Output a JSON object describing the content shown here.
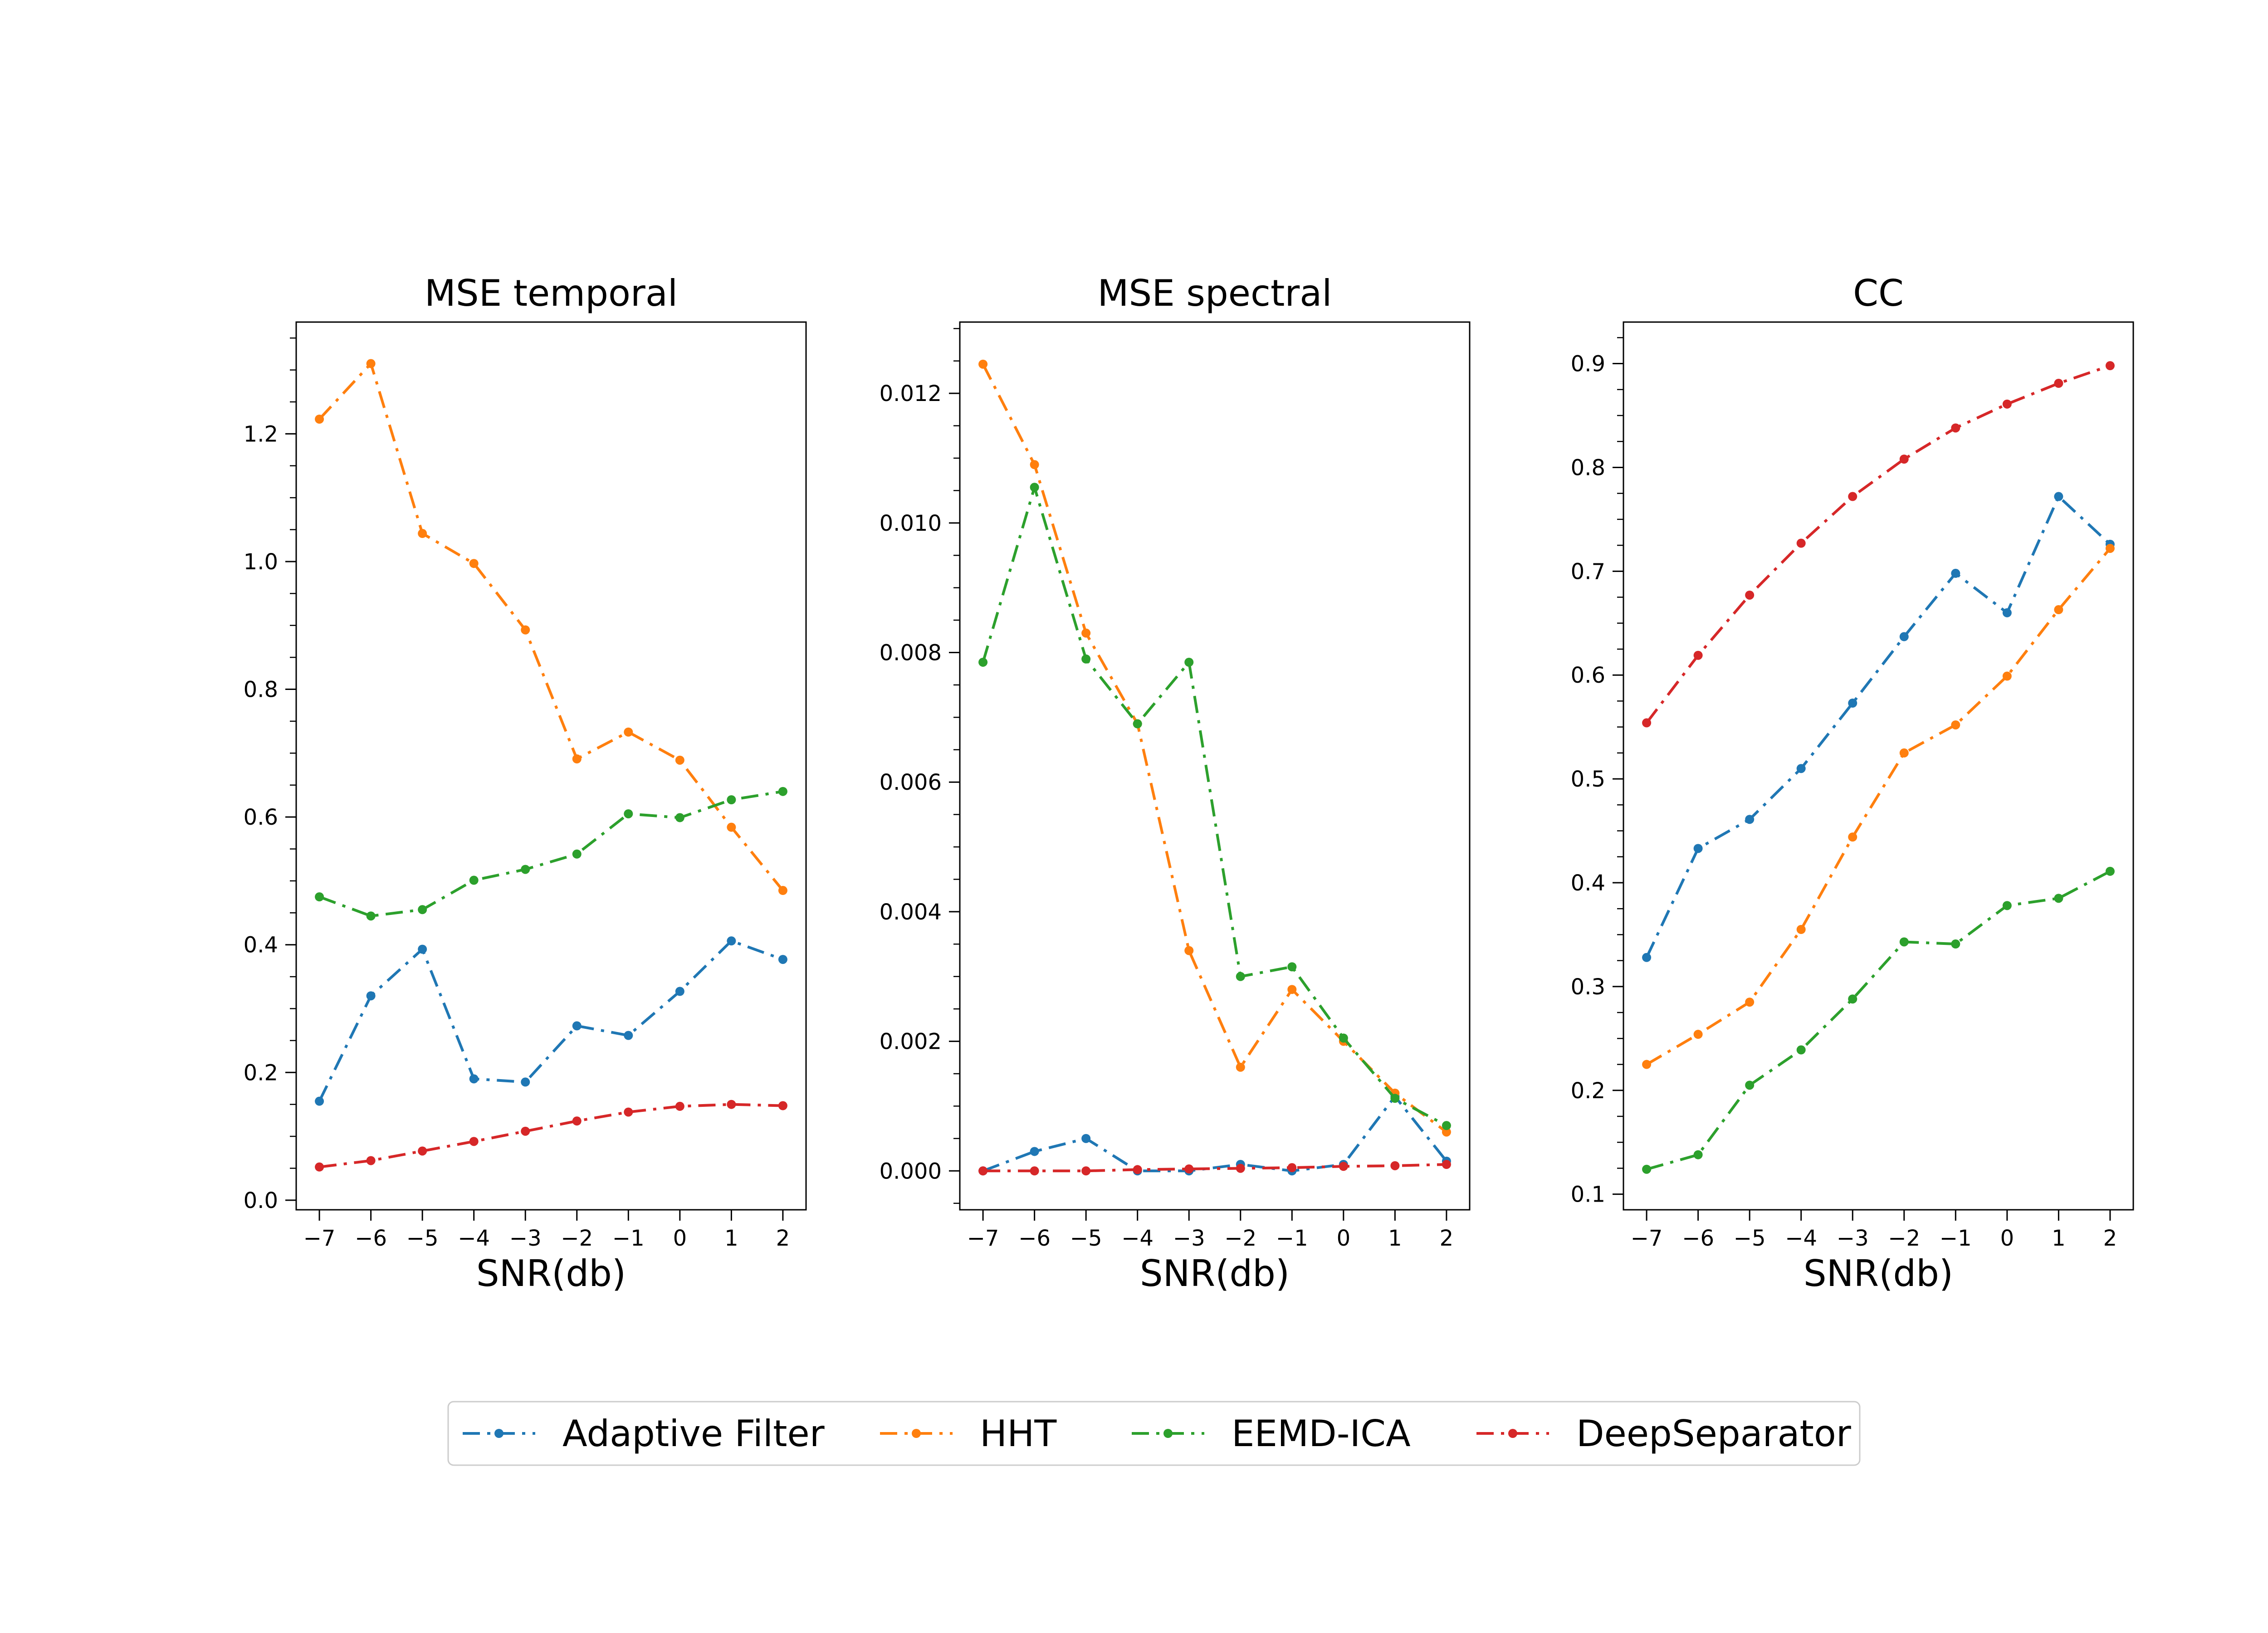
{
  "chart_data": [
    {
      "type": "line",
      "title": "MSE temporal",
      "xlabel": "SNR(db)",
      "ylabel": "",
      "x": [
        -7,
        -6,
        -5,
        -4,
        -3,
        -2,
        -1,
        0,
        1,
        2
      ],
      "xticks": [
        "−7",
        "−6",
        "−5",
        "−4",
        "−3",
        "−2",
        "−1",
        "0",
        "1",
        "2"
      ],
      "xlim": [
        -7.45,
        2.45
      ],
      "ylim": [
        -0.015,
        1.375
      ],
      "yticks": [
        "0.0",
        "0.2",
        "0.4",
        "0.6",
        "0.8",
        "1.0",
        "1.2"
      ],
      "ytick_values": [
        0.0,
        0.2,
        0.4,
        0.6,
        0.8,
        1.0,
        1.2
      ],
      "series": [
        {
          "name": "Adaptive Filter",
          "values": [
            0.155,
            0.32,
            0.393,
            0.19,
            0.185,
            0.273,
            0.258,
            0.327,
            0.406,
            0.377
          ]
        },
        {
          "name": "HHT",
          "values": [
            1.223,
            1.31,
            1.044,
            0.997,
            0.893,
            0.691,
            0.733,
            0.689,
            0.584,
            0.485
          ]
        },
        {
          "name": "EEMD-ICA",
          "values": [
            0.475,
            0.445,
            0.455,
            0.501,
            0.518,
            0.542,
            0.605,
            0.599,
            0.627,
            0.64
          ]
        },
        {
          "name": "DeepSeparator",
          "values": [
            0.052,
            0.062,
            0.077,
            0.092,
            0.108,
            0.124,
            0.138,
            0.147,
            0.15,
            0.148
          ]
        }
      ]
    },
    {
      "type": "line",
      "title": "MSE spectral",
      "xlabel": "SNR(db)",
      "ylabel": "",
      "x": [
        -7,
        -6,
        -5,
        -4,
        -3,
        -2,
        -1,
        0,
        1,
        2
      ],
      "xticks": [
        "−7",
        "−6",
        "−5",
        "−4",
        "−3",
        "−2",
        "−1",
        "0",
        "1",
        "2"
      ],
      "xlim": [
        -7.45,
        2.45
      ],
      "ylim": [
        -0.0006,
        0.0131
      ],
      "yticks": [
        "0.000",
        "0.002",
        "0.004",
        "0.006",
        "0.008",
        "0.010",
        "0.012"
      ],
      "ytick_values": [
        0.0,
        0.002,
        0.004,
        0.006,
        0.008,
        0.01,
        0.012
      ],
      "series": [
        {
          "name": "Adaptive Filter",
          "values": [
            0.0,
            0.0003,
            0.0005,
            0.0,
            0.0,
            0.0001,
            0.0,
            0.0001,
            0.00115,
            0.00015
          ]
        },
        {
          "name": "HHT",
          "values": [
            0.01245,
            0.0109,
            0.0083,
            0.0069,
            0.0034,
            0.0016,
            0.0028,
            0.002,
            0.0012,
            0.0006
          ]
        },
        {
          "name": "EEMD-ICA",
          "values": [
            0.00785,
            0.01055,
            0.0079,
            0.0069,
            0.00785,
            0.003,
            0.00315,
            0.00205,
            0.00112,
            0.0007
          ]
        },
        {
          "name": "DeepSeparator",
          "values": [
            0.0,
            0.0,
            0.0,
            2e-05,
            3e-05,
            4e-05,
            5e-05,
            7e-05,
            8e-05,
            0.0001
          ]
        }
      ]
    },
    {
      "type": "line",
      "title": "CC",
      "xlabel": "SNR(db)",
      "ylabel": "",
      "x": [
        -7,
        -6,
        -5,
        -4,
        -3,
        -2,
        -1,
        0,
        1,
        2
      ],
      "xticks": [
        "−7",
        "−6",
        "−5",
        "−4",
        "−3",
        "−2",
        "−1",
        "0",
        "1",
        "2"
      ],
      "xlim": [
        -7.45,
        2.45
      ],
      "ylim": [
        0.085,
        0.94
      ],
      "yticks": [
        "0.1",
        "0.2",
        "0.3",
        "0.4",
        "0.5",
        "0.6",
        "0.7",
        "0.8",
        "0.9"
      ],
      "ytick_values": [
        0.1,
        0.2,
        0.3,
        0.4,
        0.5,
        0.6,
        0.7,
        0.8,
        0.9
      ],
      "series": [
        {
          "name": "Adaptive Filter",
          "values": [
            0.328,
            0.433,
            0.461,
            0.51,
            0.573,
            0.637,
            0.698,
            0.66,
            0.772,
            0.726
          ]
        },
        {
          "name": "HHT",
          "values": [
            0.225,
            0.254,
            0.285,
            0.355,
            0.444,
            0.525,
            0.552,
            0.599,
            0.663,
            0.722
          ]
        },
        {
          "name": "EEMD-ICA",
          "values": [
            0.124,
            0.138,
            0.205,
            0.239,
            0.288,
            0.343,
            0.341,
            0.378,
            0.385,
            0.411
          ]
        },
        {
          "name": "DeepSeparator",
          "values": [
            0.554,
            0.619,
            0.677,
            0.727,
            0.772,
            0.808,
            0.838,
            0.861,
            0.881,
            0.898
          ]
        }
      ]
    }
  ],
  "legend": {
    "placement": "bottom-center",
    "entries": [
      "Adaptive Filter",
      "HHT",
      "EEMD-ICA",
      "DeepSeparator"
    ]
  },
  "colors": {
    "Adaptive Filter": "#1f77b4",
    "HHT": "#ff7f0e",
    "EEMD-ICA": "#2ca02c",
    "DeepSeparator": "#d62728"
  },
  "line_style": "dash-dot"
}
